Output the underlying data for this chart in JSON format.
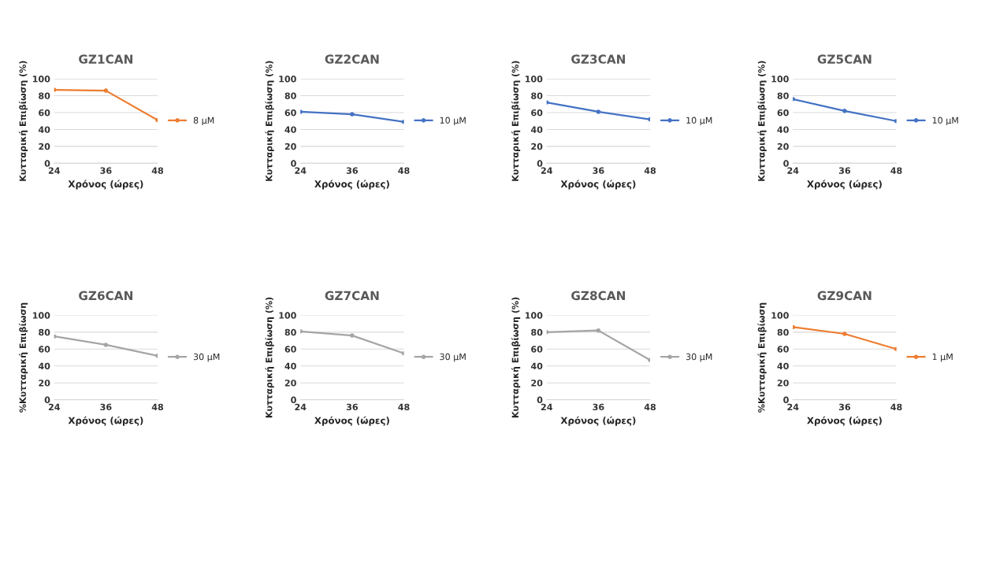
{
  "chart_data": [
    {
      "type": "line",
      "title": "GZ1CAN",
      "xlabel": "Χρόνος (ώρες)",
      "ylabel": "Κυτταρική Επιβίωση (%)",
      "x": [
        24,
        36,
        48
      ],
      "xlim": [
        24,
        48
      ],
      "xticks": [
        24,
        36,
        48
      ],
      "series": [
        {
          "name": "8 μM",
          "color": "#ed7d31",
          "values": [
            87,
            86,
            51
          ]
        }
      ],
      "ylim": [
        0,
        100
      ],
      "yticks": [
        0,
        20,
        40,
        60,
        80,
        100
      ],
      "grid": "y",
      "legend": "right",
      "marker": "circle"
    },
    {
      "type": "line",
      "title": "GZ2CAN",
      "xlabel": "Χρόνος (ώρες)",
      "ylabel": "Κυτταρική Επιβίωση (%)",
      "x": [
        24,
        36,
        48
      ],
      "xlim": [
        24,
        48
      ],
      "xticks": [
        24,
        36,
        48
      ],
      "series": [
        {
          "name": "10 μM",
          "color": "#4472c4",
          "values": [
            61,
            58,
            49
          ]
        }
      ],
      "ylim": [
        0,
        100
      ],
      "yticks": [
        0,
        20,
        40,
        60,
        80,
        100
      ],
      "grid": "y",
      "legend": "right",
      "marker": "circle"
    },
    {
      "type": "line",
      "title": "GZ3CAN",
      "xlabel": "Χρόνος (ώρες)",
      "ylabel": "Κυτταρική Επιβίωση (%)",
      "x": [
        24,
        36,
        48
      ],
      "xlim": [
        24,
        48
      ],
      "xticks": [
        24,
        36,
        48
      ],
      "series": [
        {
          "name": "10 μM",
          "color": "#4472c4",
          "values": [
            72,
            61,
            52
          ]
        }
      ],
      "ylim": [
        0,
        100
      ],
      "yticks": [
        0,
        20,
        40,
        60,
        80,
        100
      ],
      "grid": "y",
      "legend": "right",
      "marker": "circle"
    },
    {
      "type": "line",
      "title": "GZ5CAN",
      "xlabel": "Χρόνος (ώρες)",
      "ylabel": "Κυτταρική Επιβίωση (%)",
      "x": [
        24,
        36,
        48
      ],
      "xlim": [
        24,
        48
      ],
      "xticks": [
        24,
        36,
        48
      ],
      "series": [
        {
          "name": "10 μM",
          "color": "#4472c4",
          "values": [
            76,
            62,
            50
          ]
        }
      ],
      "ylim": [
        0,
        100
      ],
      "yticks": [
        0,
        20,
        40,
        60,
        80,
        100
      ],
      "grid": "y",
      "legend": "right",
      "marker": "circle"
    },
    {
      "type": "line",
      "title": "GZ6CAN",
      "xlabel": "Χρόνος (ώρες)",
      "ylabel": "%Κυτταρική Επιβίωση",
      "x": [
        24,
        36,
        48
      ],
      "xlim": [
        24,
        48
      ],
      "xticks": [
        24,
        36,
        48
      ],
      "series": [
        {
          "name": "30 μM",
          "color": "#a5a5a5",
          "values": [
            75,
            65,
            52
          ]
        }
      ],
      "ylim": [
        0,
        100
      ],
      "yticks": [
        0,
        20,
        40,
        60,
        80,
        100
      ],
      "grid": "y",
      "legend": "right",
      "marker": "circle"
    },
    {
      "type": "line",
      "title": "GZ7CAN",
      "xlabel": "Χρόνος (ώρες)",
      "ylabel": "Κυτταρική Επιβίωση (%)",
      "x": [
        24,
        36,
        48
      ],
      "xlim": [
        24,
        48
      ],
      "xticks": [
        24,
        36,
        48
      ],
      "series": [
        {
          "name": "30 μM",
          "color": "#a5a5a5",
          "values": [
            81,
            76,
            55
          ]
        }
      ],
      "ylim": [
        0,
        100
      ],
      "yticks": [
        0,
        20,
        40,
        60,
        80,
        100
      ],
      "grid": "y",
      "legend": "right",
      "marker": "circle"
    },
    {
      "type": "line",
      "title": "GZ8CAN",
      "xlabel": "Χρόνος (ώρες)",
      "ylabel": "Κυτταρική Επιβίωση (%)",
      "x": [
        24,
        36,
        48
      ],
      "xlim": [
        24,
        48
      ],
      "xticks": [
        24,
        36,
        48
      ],
      "series": [
        {
          "name": "30 μM",
          "color": "#a5a5a5",
          "values": [
            80,
            82,
            47
          ]
        }
      ],
      "ylim": [
        0,
        100
      ],
      "yticks": [
        0,
        20,
        40,
        60,
        80,
        100
      ],
      "grid": "y",
      "legend": "right",
      "marker": "circle"
    },
    {
      "type": "line",
      "title": "GZ9CAN",
      "xlabel": "Χρόνος (ώρες)",
      "ylabel": "%Κυτταρική Επιβίωση",
      "x": [
        24,
        36,
        48
      ],
      "xlim": [
        24,
        48
      ],
      "xticks": [
        24,
        36,
        48
      ],
      "series": [
        {
          "name": "1 μM",
          "color": "#ed7d31",
          "values": [
            86,
            78,
            60
          ]
        }
      ],
      "ylim": [
        0,
        100
      ],
      "yticks": [
        0,
        20,
        40,
        60,
        80,
        100
      ],
      "grid": "y",
      "legend": "right",
      "marker": "circle"
    }
  ]
}
